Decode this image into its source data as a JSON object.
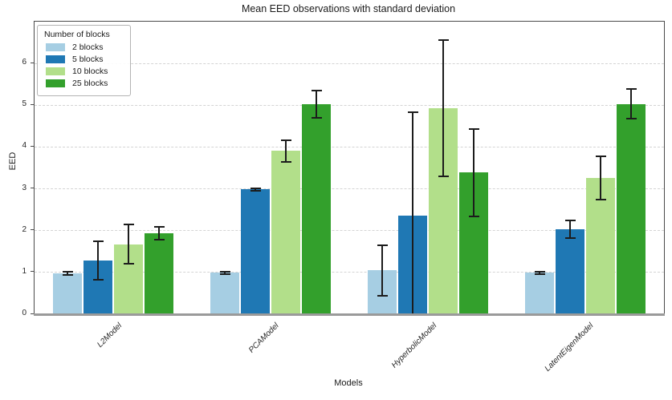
{
  "chart_data": {
    "type": "bar",
    "title": "Mean EED observations with standard deviation",
    "xlabel": "Models",
    "ylabel": "EED",
    "ylim": [
      0,
      7
    ],
    "yticks": [
      0,
      1,
      2,
      3,
      4,
      5,
      6
    ],
    "grid": "horizontal-dashed",
    "legend_title": "Number of blocks",
    "legend_position": "upper-left",
    "categories": [
      "L2Model",
      "PCAModel",
      "HyperbolicModel",
      "LatentEigenModel"
    ],
    "series": [
      {
        "name": "2 blocks",
        "color": "#a6cee3",
        "values": [
          0.98,
          0.99,
          1.05,
          0.99
        ],
        "errors": [
          0.04,
          0.03,
          0.6,
          0.03
        ]
      },
      {
        "name": "5 blocks",
        "color": "#1f78b4",
        "values": [
          1.28,
          2.99,
          2.35,
          2.03
        ],
        "errors": [
          0.46,
          0.03,
          2.48,
          0.21
        ]
      },
      {
        "name": "10 blocks",
        "color": "#b2df8a",
        "values": [
          1.67,
          3.91,
          4.93,
          3.26
        ],
        "errors": [
          0.47,
          0.26,
          1.63,
          0.51
        ]
      },
      {
        "name": "25 blocks",
        "color": "#33a02c",
        "values": [
          1.94,
          5.03,
          3.39,
          5.03
        ],
        "errors": [
          0.16,
          0.33,
          1.05,
          0.35
        ]
      }
    ],
    "error_bar_color": "#1c1c1c",
    "gridline_color": "#d4d4d4"
  }
}
